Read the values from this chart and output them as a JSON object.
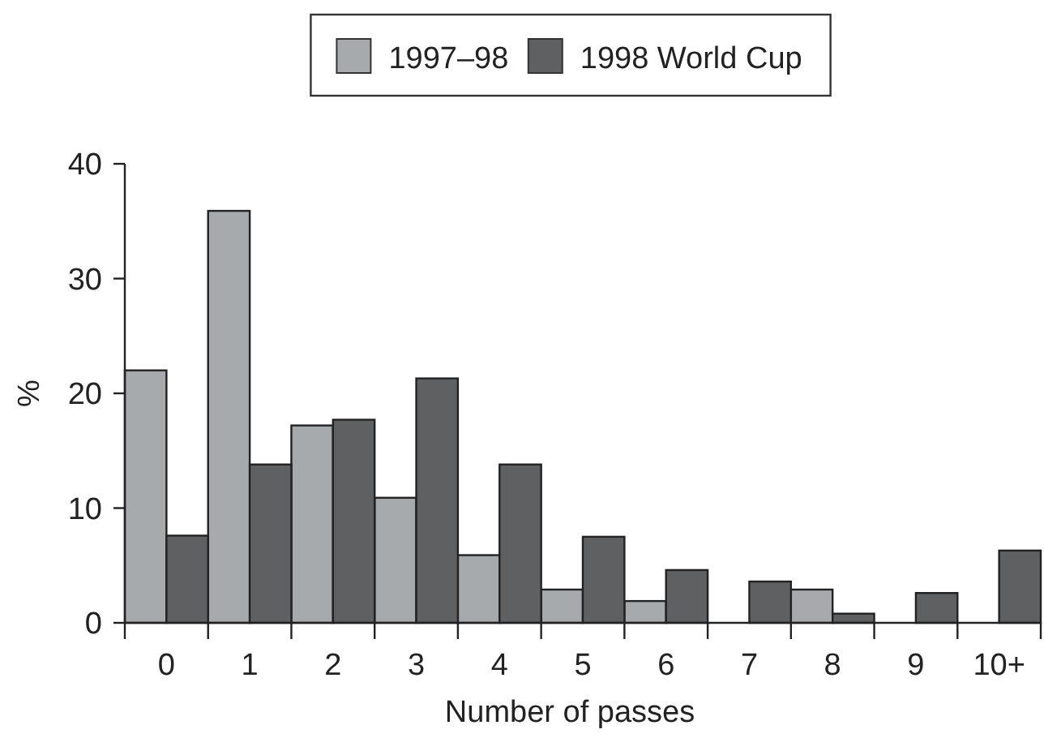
{
  "chart_data": {
    "type": "bar",
    "xlabel": "Number of passes",
    "ylabel": "%",
    "categories": [
      "0",
      "1",
      "2",
      "3",
      "4",
      "5",
      "6",
      "7",
      "8",
      "9",
      "10+"
    ],
    "series": [
      {
        "name": "1997–98",
        "color": "#a7aaad",
        "values": [
          22,
          35.9,
          17.2,
          10.9,
          5.9,
          2.9,
          1.9,
          0,
          2.9,
          0,
          0
        ]
      },
      {
        "name": "1998 World Cup",
        "color": "#5f6062",
        "values": [
          7.6,
          13.8,
          17.7,
          21.3,
          13.8,
          7.5,
          4.6,
          3.6,
          0.8,
          2.6,
          6.3
        ]
      }
    ],
    "ylim": [
      0,
      40
    ],
    "yticks": [
      0,
      10,
      20,
      30,
      40
    ],
    "legend": "top",
    "grid": false
  }
}
